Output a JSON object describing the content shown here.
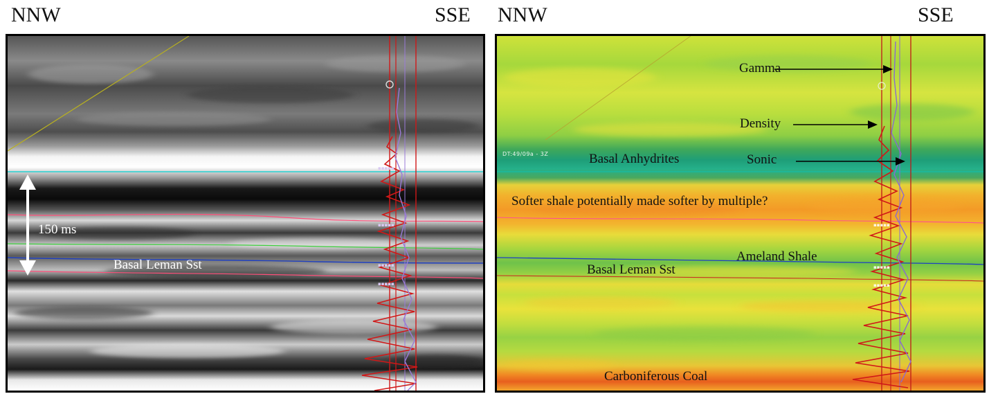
{
  "left_panel": {
    "direction_left": "NNW",
    "direction_right": "SSE",
    "scale_label": "150 ms",
    "horizon_label": "Basal Leman Sst"
  },
  "right_panel": {
    "direction_left": "NNW",
    "direction_right": "SSE",
    "well_tag": "DT:49/09a - 3Z",
    "labels": {
      "gamma": "Gamma",
      "density": "Density",
      "sonic": "Sonic",
      "basal_anhydrites": "Basal Anhydrites",
      "softer_shale": "Softer shale potentially made softer by multiple?",
      "ameland_shale": "Ameland Shale",
      "basal_leman": "Basal Leman Sst",
      "carboniferous_coal": "Carboniferous Coal"
    }
  },
  "colors": {
    "horizon_cyan": "#00d0d0",
    "horizon_pink": "#ff4f7a",
    "horizon_green": "#3ccf3c",
    "horizon_blue": "#2040c0",
    "horizon_red": "#c83020",
    "log_red": "#d01818",
    "log_purple": "#9a7ad8",
    "yellow_line": "#b8b020"
  }
}
